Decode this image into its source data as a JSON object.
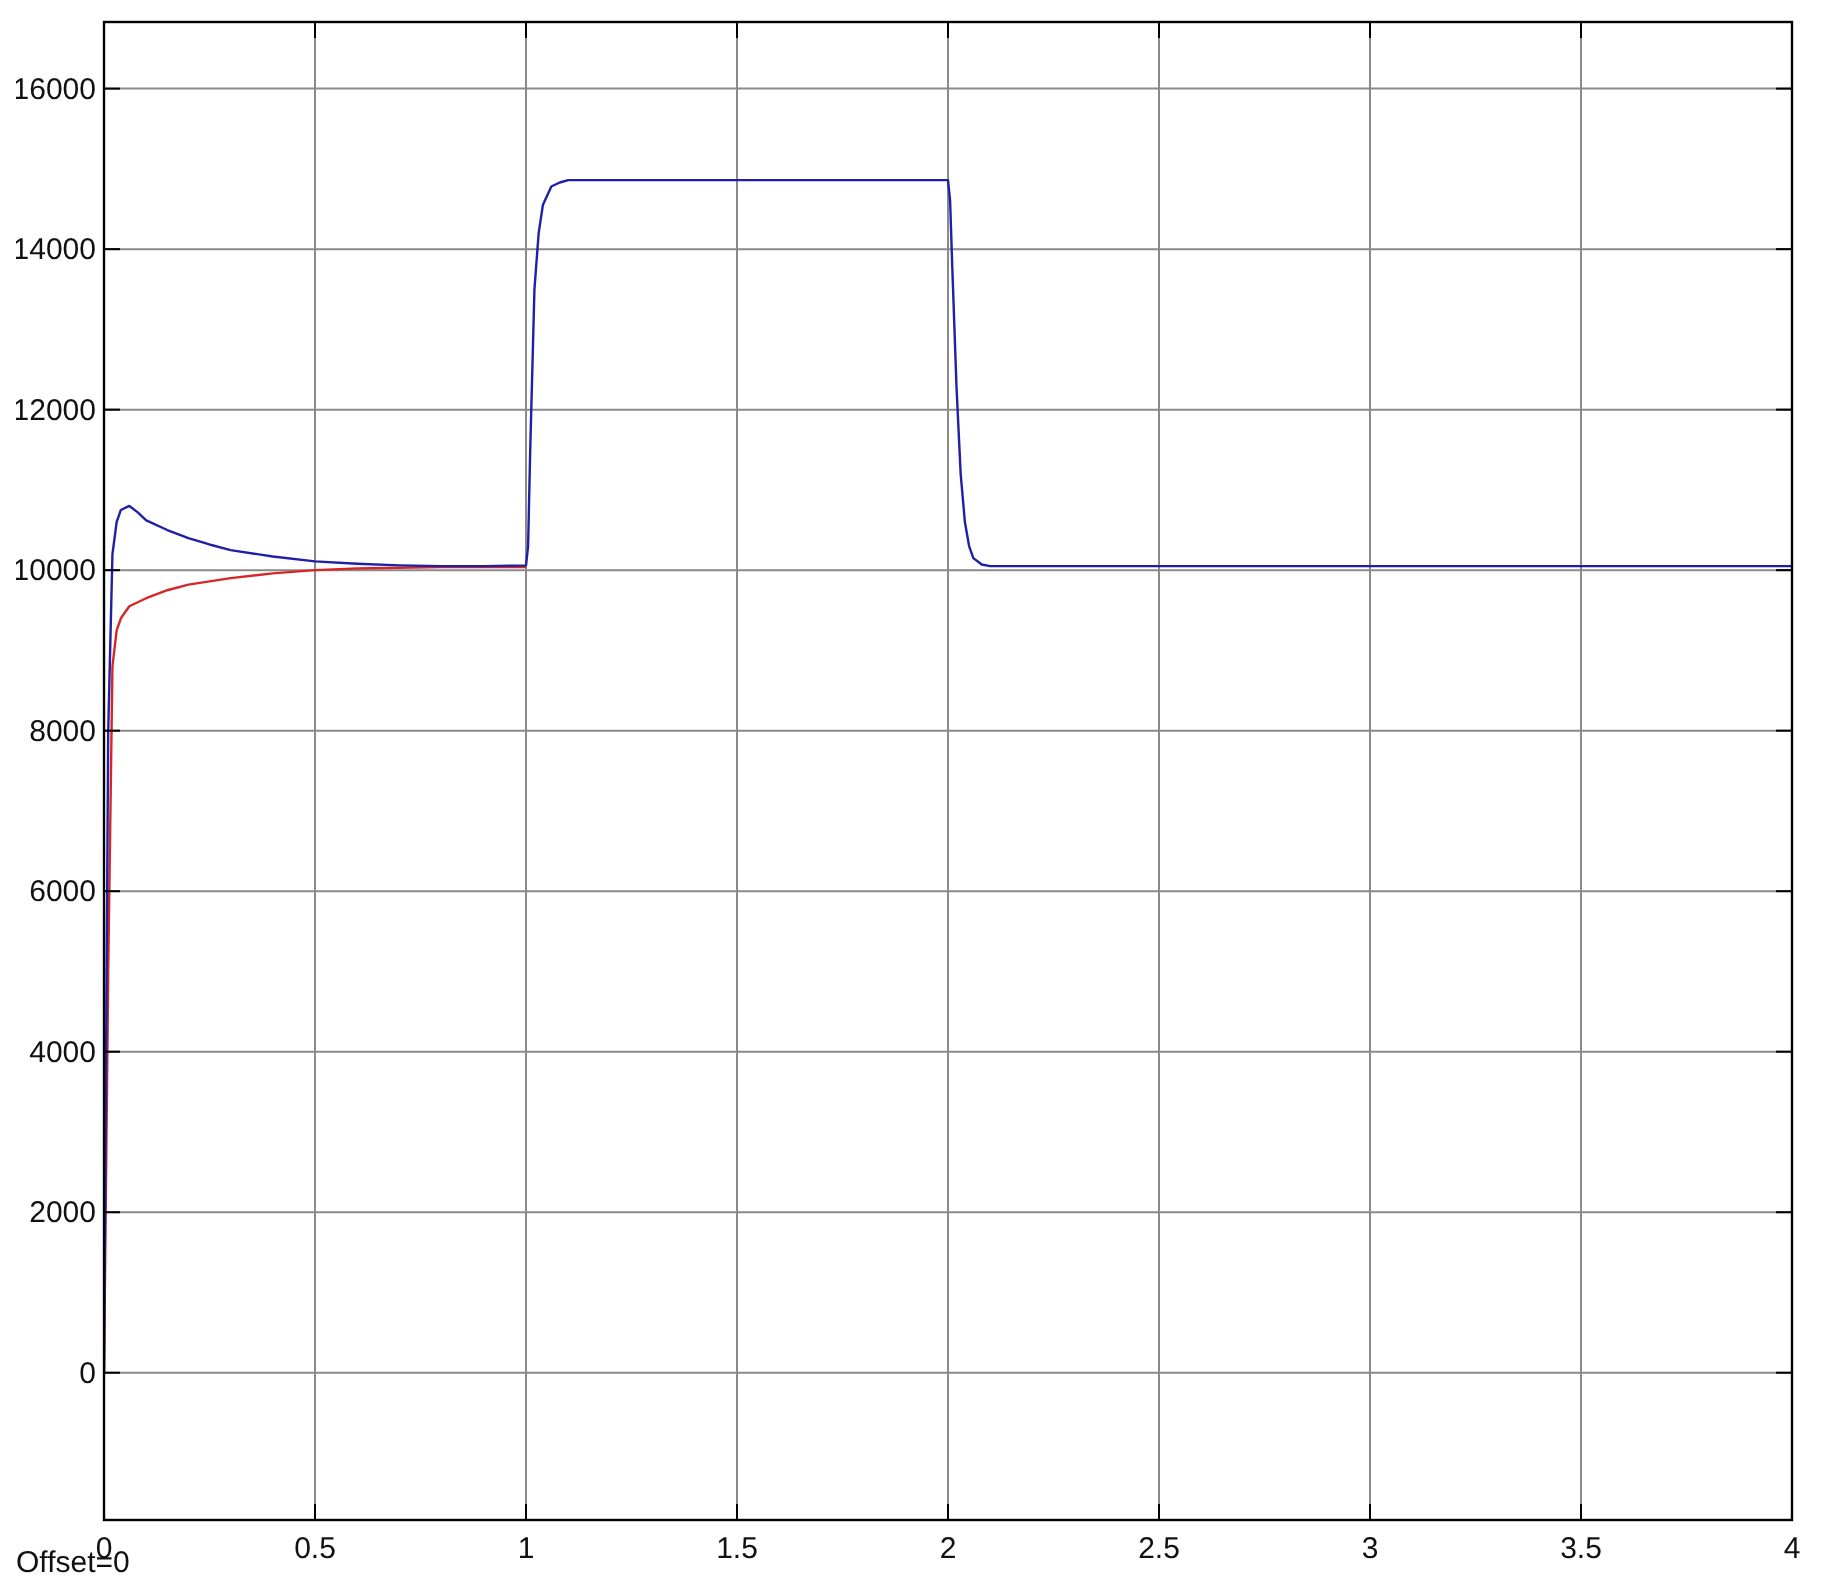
{
  "chart_data": {
    "type": "line",
    "xlim": [
      0,
      4
    ],
    "ylim": [
      -1835,
      16830
    ],
    "xticks": [
      0,
      0.5,
      1,
      1.5,
      2,
      2.5,
      3,
      3.5,
      4
    ],
    "yticks": [
      0,
      2000,
      4000,
      6000,
      8000,
      10000,
      12000,
      14000,
      16000
    ],
    "grid": true,
    "annotations": [
      "Offset=0"
    ],
    "series": [
      {
        "color": "#d62728",
        "x": [
          0,
          0.005,
          0.01,
          0.02,
          0.03,
          0.04,
          0.06,
          0.1,
          0.15,
          0.2,
          0.25,
          0.3,
          0.4,
          0.5,
          0.6,
          0.7,
          0.8,
          0.9,
          1.0
        ],
        "values": [
          0,
          2500,
          5000,
          8800,
          9250,
          9400,
          9550,
          9650,
          9750,
          9820,
          9860,
          9900,
          9960,
          10000,
          10020,
          10030,
          10040,
          10040,
          10040
        ]
      },
      {
        "color": "#1f1fa8",
        "x": [
          0,
          0.005,
          0.01,
          0.02,
          0.03,
          0.04,
          0.06,
          0.08,
          0.1,
          0.15,
          0.2,
          0.25,
          0.3,
          0.4,
          0.5,
          0.6,
          0.7,
          0.8,
          0.9,
          1.0,
          1.005,
          1.01,
          1.02,
          1.03,
          1.04,
          1.06,
          1.08,
          1.1,
          1.5,
          2.0,
          2.005,
          2.01,
          2.02,
          2.03,
          2.04,
          2.05,
          2.06,
          2.08,
          2.1,
          2.5,
          3,
          3.5,
          4
        ],
        "values": [
          0,
          4000,
          8000,
          10200,
          10600,
          10750,
          10800,
          10720,
          10620,
          10500,
          10400,
          10320,
          10250,
          10170,
          10110,
          10080,
          10060,
          10050,
          10050,
          10060,
          10300,
          11500,
          13500,
          14200,
          14550,
          14780,
          14830,
          14860,
          14860,
          14860,
          14600,
          13800,
          12300,
          11200,
          10600,
          10300,
          10150,
          10070,
          10050,
          10050,
          10050,
          10050,
          10050
        ]
      }
    ]
  }
}
